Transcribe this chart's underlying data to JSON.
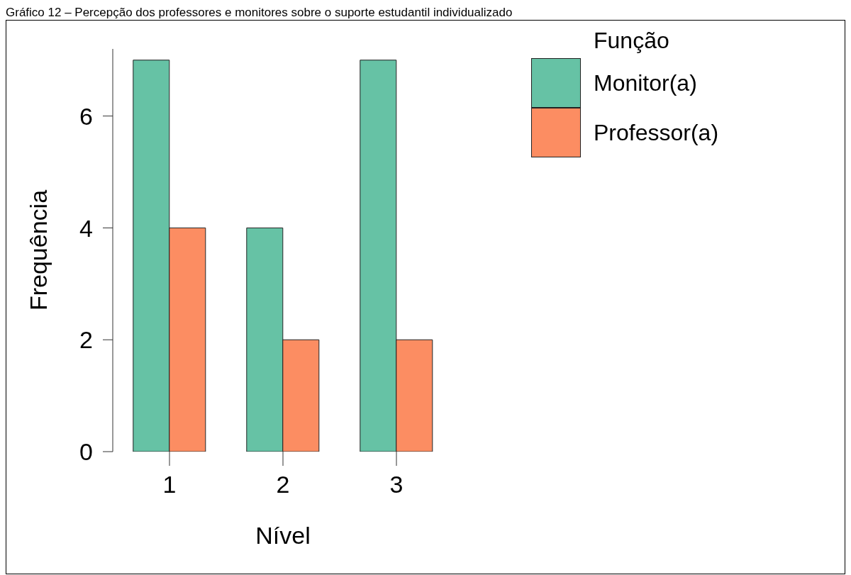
{
  "chart_data": {
    "type": "bar",
    "title": "Gráfico 12 – Percepção dos professores e monitores sobre o suporte estudantil individualizado",
    "categories": [
      "1",
      "2",
      "3"
    ],
    "xlabel": "Nível",
    "ylabel": "Frequência",
    "legend_title": "Função",
    "series": [
      {
        "name": "Monitor(a)",
        "color": "#66c2a5",
        "values": [
          7,
          4,
          7
        ]
      },
      {
        "name": "Professor(a)",
        "color": "#fc8d62",
        "values": [
          4,
          2,
          2
        ]
      }
    ],
    "ylim": [
      0,
      7.2
    ],
    "yticks": [
      0,
      2,
      4,
      6
    ],
    "grid": false,
    "legend": "top right"
  }
}
